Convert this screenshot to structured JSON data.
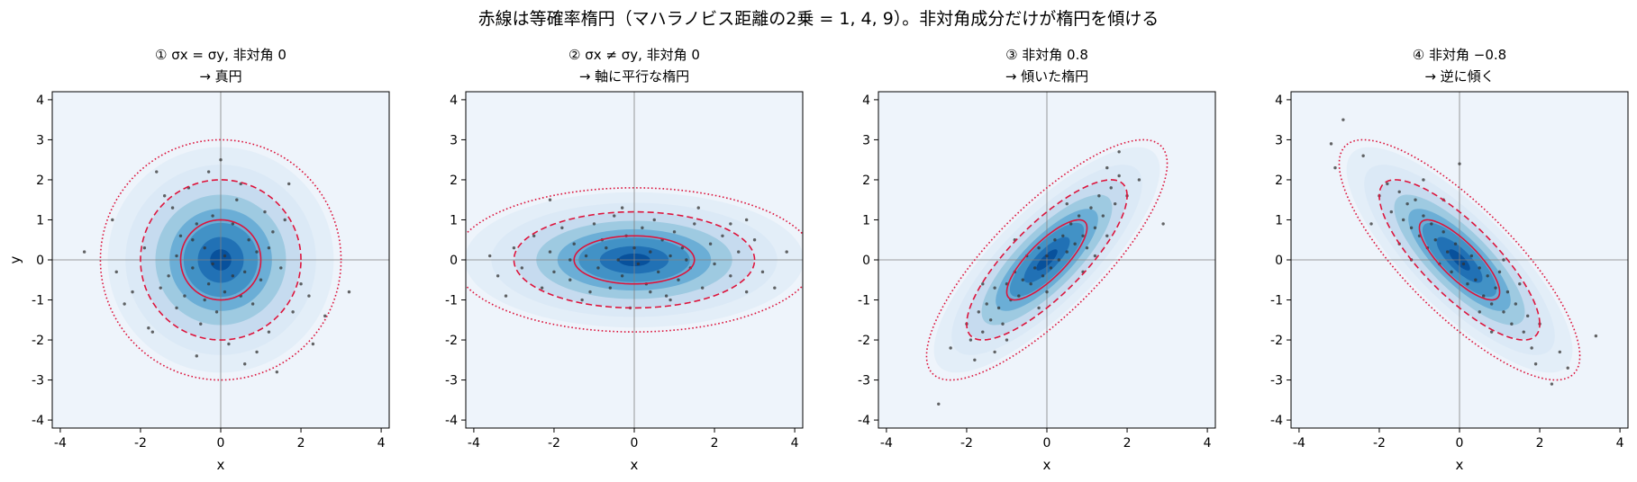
{
  "figure": {
    "suptitle": "赤線は等確率楕円（マハラノビス距離の2乗 = 1, 4, 9）。非対角成分だけが楕円を傾ける"
  },
  "colors": {
    "background": "#eef4fb",
    "density_blues": [
      "#dbe9f6",
      "#c6dbef",
      "#9ecae1",
      "#6baed6",
      "#4292c6",
      "#2171b5",
      "#08519c"
    ],
    "contour": "#dc143c",
    "points": "#333333",
    "axes_cross": "#808080"
  },
  "chart_data": [
    {
      "type": "scatter",
      "title_line1": "① σx = σy, 非対角 0",
      "title_line2": "→ 真円",
      "xlabel": "x",
      "ylabel": "y",
      "xlim": [
        -4.2,
        4.2
      ],
      "ylim": [
        -4.2,
        4.2
      ],
      "xticks": [
        -4,
        -2,
        0,
        2,
        4
      ],
      "yticks": [
        -4,
        -3,
        -2,
        -1,
        0,
        1,
        2,
        3,
        4
      ],
      "covariance": {
        "sx": 1.0,
        "sy": 1.0,
        "rho": 0.0
      },
      "contours": [
        {
          "mahalanobis_sq": 1,
          "style": "solid"
        },
        {
          "mahalanobis_sq": 4,
          "style": "dashed"
        },
        {
          "mahalanobis_sq": 9,
          "style": "dotted"
        }
      ],
      "points": [
        [
          -3.4,
          0.2
        ],
        [
          -2.7,
          1.0
        ],
        [
          -2.6,
          -0.3
        ],
        [
          -2.4,
          -1.1
        ],
        [
          -1.8,
          -1.7
        ],
        [
          -1.7,
          -1.8
        ],
        [
          -1.6,
          2.2
        ],
        [
          -1.5,
          -0.7
        ],
        [
          -1.4,
          1.6
        ],
        [
          -1.3,
          -0.4
        ],
        [
          -1.2,
          1.3
        ],
        [
          -1.1,
          -1.2
        ],
        [
          -1.0,
          0.6
        ],
        [
          -0.9,
          -0.9
        ],
        [
          -0.8,
          1.8
        ],
        [
          -0.7,
          -0.2
        ],
        [
          -0.6,
          0.9
        ],
        [
          -0.5,
          -1.6
        ],
        [
          -0.4,
          0.3
        ],
        [
          -0.3,
          -0.6
        ],
        [
          -0.2,
          1.1
        ],
        [
          -0.1,
          -1.3
        ],
        [
          0.0,
          2.5
        ],
        [
          0.1,
          0.1
        ],
        [
          0.2,
          -2.1
        ],
        [
          0.3,
          -0.4
        ],
        [
          0.4,
          1.5
        ],
        [
          0.5,
          -0.9
        ],
        [
          0.6,
          -2.6
        ],
        [
          0.7,
          0.5
        ],
        [
          0.8,
          -1.1
        ],
        [
          0.9,
          0.2
        ],
        [
          1.0,
          -0.5
        ],
        [
          1.1,
          1.2
        ],
        [
          1.2,
          -1.8
        ],
        [
          1.3,
          0.7
        ],
        [
          1.4,
          -2.8
        ],
        [
          1.5,
          -0.2
        ],
        [
          1.6,
          1.0
        ],
        [
          1.8,
          -1.3
        ],
        [
          2.0,
          -0.6
        ],
        [
          2.2,
          -0.9
        ],
        [
          2.3,
          -2.1
        ],
        [
          2.6,
          -1.4
        ],
        [
          3.2,
          -0.8
        ],
        [
          -2.2,
          -0.8
        ],
        [
          -0.3,
          2.2
        ],
        [
          0.5,
          1.9
        ],
        [
          -1.9,
          0.3
        ],
        [
          1.7,
          1.9
        ],
        [
          -0.6,
          -2.4
        ],
        [
          0.9,
          -2.3
        ],
        [
          -1.1,
          0.1
        ],
        [
          0.3,
          0.9
        ],
        [
          -0.2,
          -0.1
        ],
        [
          0.6,
          -0.3
        ],
        [
          -0.7,
          0.5
        ],
        [
          0.1,
          -0.8
        ],
        [
          -0.4,
          -1.0
        ],
        [
          1.2,
          0.3
        ]
      ]
    },
    {
      "type": "scatter",
      "title_line1": "② σx ≠ σy, 非対角 0",
      "title_line2": "→ 軸に平行な楕円",
      "xlabel": "x",
      "ylabel": "",
      "xlim": [
        -4.2,
        4.2
      ],
      "ylim": [
        -4.2,
        4.2
      ],
      "xticks": [
        -4,
        -2,
        0,
        2,
        4
      ],
      "yticks": [
        -4,
        -3,
        -2,
        -1,
        0,
        1,
        2,
        3,
        4
      ],
      "covariance": {
        "sx": 1.5,
        "sy": 0.6,
        "rho": 0.0
      },
      "contours": [
        {
          "mahalanobis_sq": 1,
          "style": "solid"
        },
        {
          "mahalanobis_sq": 4,
          "style": "dashed"
        },
        {
          "mahalanobis_sq": 9,
          "style": "dotted"
        }
      ],
      "points": [
        [
          -3.6,
          0.1
        ],
        [
          -3.4,
          -0.4
        ],
        [
          -3.2,
          -0.9
        ],
        [
          -3.0,
          0.3
        ],
        [
          -2.8,
          -0.2
        ],
        [
          -2.5,
          0.6
        ],
        [
          -2.3,
          -0.7
        ],
        [
          -2.1,
          0.2
        ],
        [
          -2.0,
          -0.3
        ],
        [
          -1.8,
          0.8
        ],
        [
          -1.6,
          -0.5
        ],
        [
          -1.5,
          0.4
        ],
        [
          -1.3,
          -1.0
        ],
        [
          -1.2,
          0.1
        ],
        [
          -1.0,
          0.9
        ],
        [
          -0.9,
          -0.2
        ],
        [
          -0.8,
          0.5
        ],
        [
          -0.6,
          -0.7
        ],
        [
          -0.5,
          1.1
        ],
        [
          -0.4,
          0.0
        ],
        [
          -0.3,
          -0.4
        ],
        [
          -0.2,
          0.6
        ],
        [
          -0.1,
          -1.2
        ],
        [
          0.0,
          0.3
        ],
        [
          0.1,
          -0.1
        ],
        [
          0.2,
          0.8
        ],
        [
          0.3,
          -0.6
        ],
        [
          0.4,
          0.2
        ],
        [
          0.5,
          1.0
        ],
        [
          0.6,
          -0.3
        ],
        [
          0.7,
          0.5
        ],
        [
          0.8,
          -0.9
        ],
        [
          0.9,
          0.1
        ],
        [
          1.0,
          0.7
        ],
        [
          1.1,
          -0.5
        ],
        [
          1.2,
          0.3
        ],
        [
          1.4,
          -0.2
        ],
        [
          1.5,
          0.9
        ],
        [
          1.7,
          -0.7
        ],
        [
          1.9,
          0.4
        ],
        [
          2.0,
          -0.1
        ],
        [
          2.2,
          0.6
        ],
        [
          2.4,
          -0.4
        ],
        [
          2.6,
          0.2
        ],
        [
          2.8,
          -0.8
        ],
        [
          3.0,
          0.5
        ],
        [
          3.2,
          -0.3
        ],
        [
          3.5,
          -0.7
        ],
        [
          3.8,
          0.2
        ],
        [
          -2.1,
          1.5
        ],
        [
          1.6,
          1.3
        ],
        [
          2.8,
          1.0
        ],
        [
          -1.1,
          -0.8
        ],
        [
          0.9,
          -1.0
        ],
        [
          -0.3,
          1.3
        ],
        [
          1.3,
          0.0
        ],
        [
          -1.6,
          0.0
        ],
        [
          0.4,
          -0.8
        ],
        [
          -0.7,
          0.3
        ],
        [
          2.4,
          0.9
        ]
      ]
    },
    {
      "type": "scatter",
      "title_line1": "③ 非対角 0.8",
      "title_line2": "→ 傾いた楕円",
      "xlabel": "x",
      "ylabel": "",
      "xlim": [
        -4.2,
        4.2
      ],
      "ylim": [
        -4.2,
        4.2
      ],
      "xticks": [
        -4,
        -2,
        0,
        2,
        4
      ],
      "yticks": [
        -4,
        -3,
        -2,
        -1,
        0,
        1,
        2,
        3,
        4
      ],
      "covariance": {
        "sx": 1.0,
        "sy": 1.0,
        "rho": 0.8
      },
      "contours": [
        {
          "mahalanobis_sq": 1,
          "style": "solid"
        },
        {
          "mahalanobis_sq": 4,
          "style": "dashed"
        },
        {
          "mahalanobis_sq": 9,
          "style": "dotted"
        }
      ],
      "points": [
        [
          -2.7,
          -3.6
        ],
        [
          -2.4,
          -2.2
        ],
        [
          -2.0,
          -1.6
        ],
        [
          -1.9,
          -2.0
        ],
        [
          -1.7,
          -1.3
        ],
        [
          -1.6,
          -1.8
        ],
        [
          -1.5,
          -1.1
        ],
        [
          -1.4,
          -1.5
        ],
        [
          -1.3,
          -0.7
        ],
        [
          -1.2,
          -1.2
        ],
        [
          -1.1,
          -1.6
        ],
        [
          -1.0,
          -0.6
        ],
        [
          -0.9,
          -1.0
        ],
        [
          -0.8,
          -0.3
        ],
        [
          -0.7,
          -0.9
        ],
        [
          -0.6,
          -0.5
        ],
        [
          -0.5,
          0.1
        ],
        [
          -0.4,
          -0.6
        ],
        [
          -0.3,
          -0.2
        ],
        [
          -0.2,
          0.3
        ],
        [
          -0.1,
          -0.4
        ],
        [
          0.0,
          0.1
        ],
        [
          0.1,
          -0.2
        ],
        [
          0.2,
          0.5
        ],
        [
          0.3,
          0.0
        ],
        [
          0.4,
          0.6
        ],
        [
          0.5,
          0.2
        ],
        [
          0.6,
          0.9
        ],
        [
          0.7,
          0.4
        ],
        [
          0.8,
          1.1
        ],
        [
          0.9,
          0.6
        ],
        [
          1.0,
          0.3
        ],
        [
          1.1,
          1.3
        ],
        [
          1.2,
          0.8
        ],
        [
          1.3,
          1.6
        ],
        [
          1.4,
          1.1
        ],
        [
          1.5,
          0.6
        ],
        [
          1.6,
          1.8
        ],
        [
          1.7,
          1.4
        ],
        [
          1.8,
          2.1
        ],
        [
          2.0,
          1.6
        ],
        [
          2.3,
          2.0
        ],
        [
          2.9,
          0.9
        ],
        [
          -1.8,
          -2.5
        ],
        [
          -1.0,
          -2.0
        ],
        [
          0.9,
          -0.3
        ],
        [
          1.8,
          2.7
        ],
        [
          1.5,
          2.3
        ],
        [
          -0.2,
          -1.2
        ],
        [
          0.5,
          1.4
        ],
        [
          -1.6,
          -0.6
        ],
        [
          -0.8,
          0.5
        ],
        [
          1.2,
          0.1
        ],
        [
          -1.3,
          -2.3
        ],
        [
          0.0,
          -0.8
        ]
      ]
    },
    {
      "type": "scatter",
      "title_line1": "④ 非対角 −0.8",
      "title_line2": "→ 逆に傾く",
      "xlabel": "x",
      "ylabel": "",
      "xlim": [
        -4.2,
        4.2
      ],
      "ylim": [
        -4.2,
        4.2
      ],
      "xticks": [
        -4,
        -2,
        0,
        2,
        4
      ],
      "yticks": [
        -4,
        -3,
        -2,
        -1,
        0,
        1,
        2,
        3,
        4
      ],
      "covariance": {
        "sx": 1.0,
        "sy": 1.0,
        "rho": -0.8
      },
      "contours": [
        {
          "mahalanobis_sq": 1,
          "style": "solid"
        },
        {
          "mahalanobis_sq": 4,
          "style": "dashed"
        },
        {
          "mahalanobis_sq": 9,
          "style": "dotted"
        }
      ],
      "points": [
        [
          -3.2,
          2.9
        ],
        [
          -3.1,
          2.3
        ],
        [
          -2.9,
          3.5
        ],
        [
          -2.4,
          2.6
        ],
        [
          -2.0,
          1.6
        ],
        [
          -1.8,
          1.9
        ],
        [
          -1.7,
          1.2
        ],
        [
          -1.5,
          1.7
        ],
        [
          -1.4,
          1.0
        ],
        [
          -1.3,
          1.4
        ],
        [
          -1.2,
          0.8
        ],
        [
          -1.1,
          1.5
        ],
        [
          -1.0,
          0.6
        ],
        [
          -0.9,
          1.1
        ],
        [
          -0.8,
          0.3
        ],
        [
          -0.7,
          0.9
        ],
        [
          -0.6,
          0.5
        ],
        [
          -0.5,
          -0.1
        ],
        [
          -0.4,
          0.7
        ],
        [
          -0.3,
          0.2
        ],
        [
          -0.2,
          -0.3
        ],
        [
          -0.1,
          0.4
        ],
        [
          0.0,
          2.4
        ],
        [
          0.1,
          -0.1
        ],
        [
          0.2,
          -0.6
        ],
        [
          0.3,
          0.1
        ],
        [
          0.4,
          -0.5
        ],
        [
          0.5,
          -0.2
        ],
        [
          0.6,
          -0.9
        ],
        [
          0.7,
          -0.4
        ],
        [
          0.8,
          -1.1
        ],
        [
          0.9,
          -0.7
        ],
        [
          1.0,
          -0.3
        ],
        [
          1.1,
          -1.3
        ],
        [
          1.2,
          -0.8
        ],
        [
          1.3,
          -1.6
        ],
        [
          1.4,
          -1.1
        ],
        [
          1.5,
          -0.6
        ],
        [
          1.6,
          -1.8
        ],
        [
          1.7,
          -1.4
        ],
        [
          1.8,
          -2.2
        ],
        [
          2.0,
          -1.6
        ],
        [
          2.3,
          -3.1
        ],
        [
          2.5,
          -2.3
        ],
        [
          2.7,
          -2.7
        ],
        [
          3.4,
          -1.9
        ],
        [
          -1.5,
          0.4
        ],
        [
          0.8,
          -1.8
        ],
        [
          -0.9,
          2.0
        ],
        [
          1.9,
          -2.6
        ],
        [
          -2.2,
          0.9
        ],
        [
          0.5,
          -1.3
        ],
        [
          -0.4,
          1.5
        ],
        [
          1.1,
          0.0
        ],
        [
          -1.2,
          0.0
        ]
      ]
    }
  ]
}
